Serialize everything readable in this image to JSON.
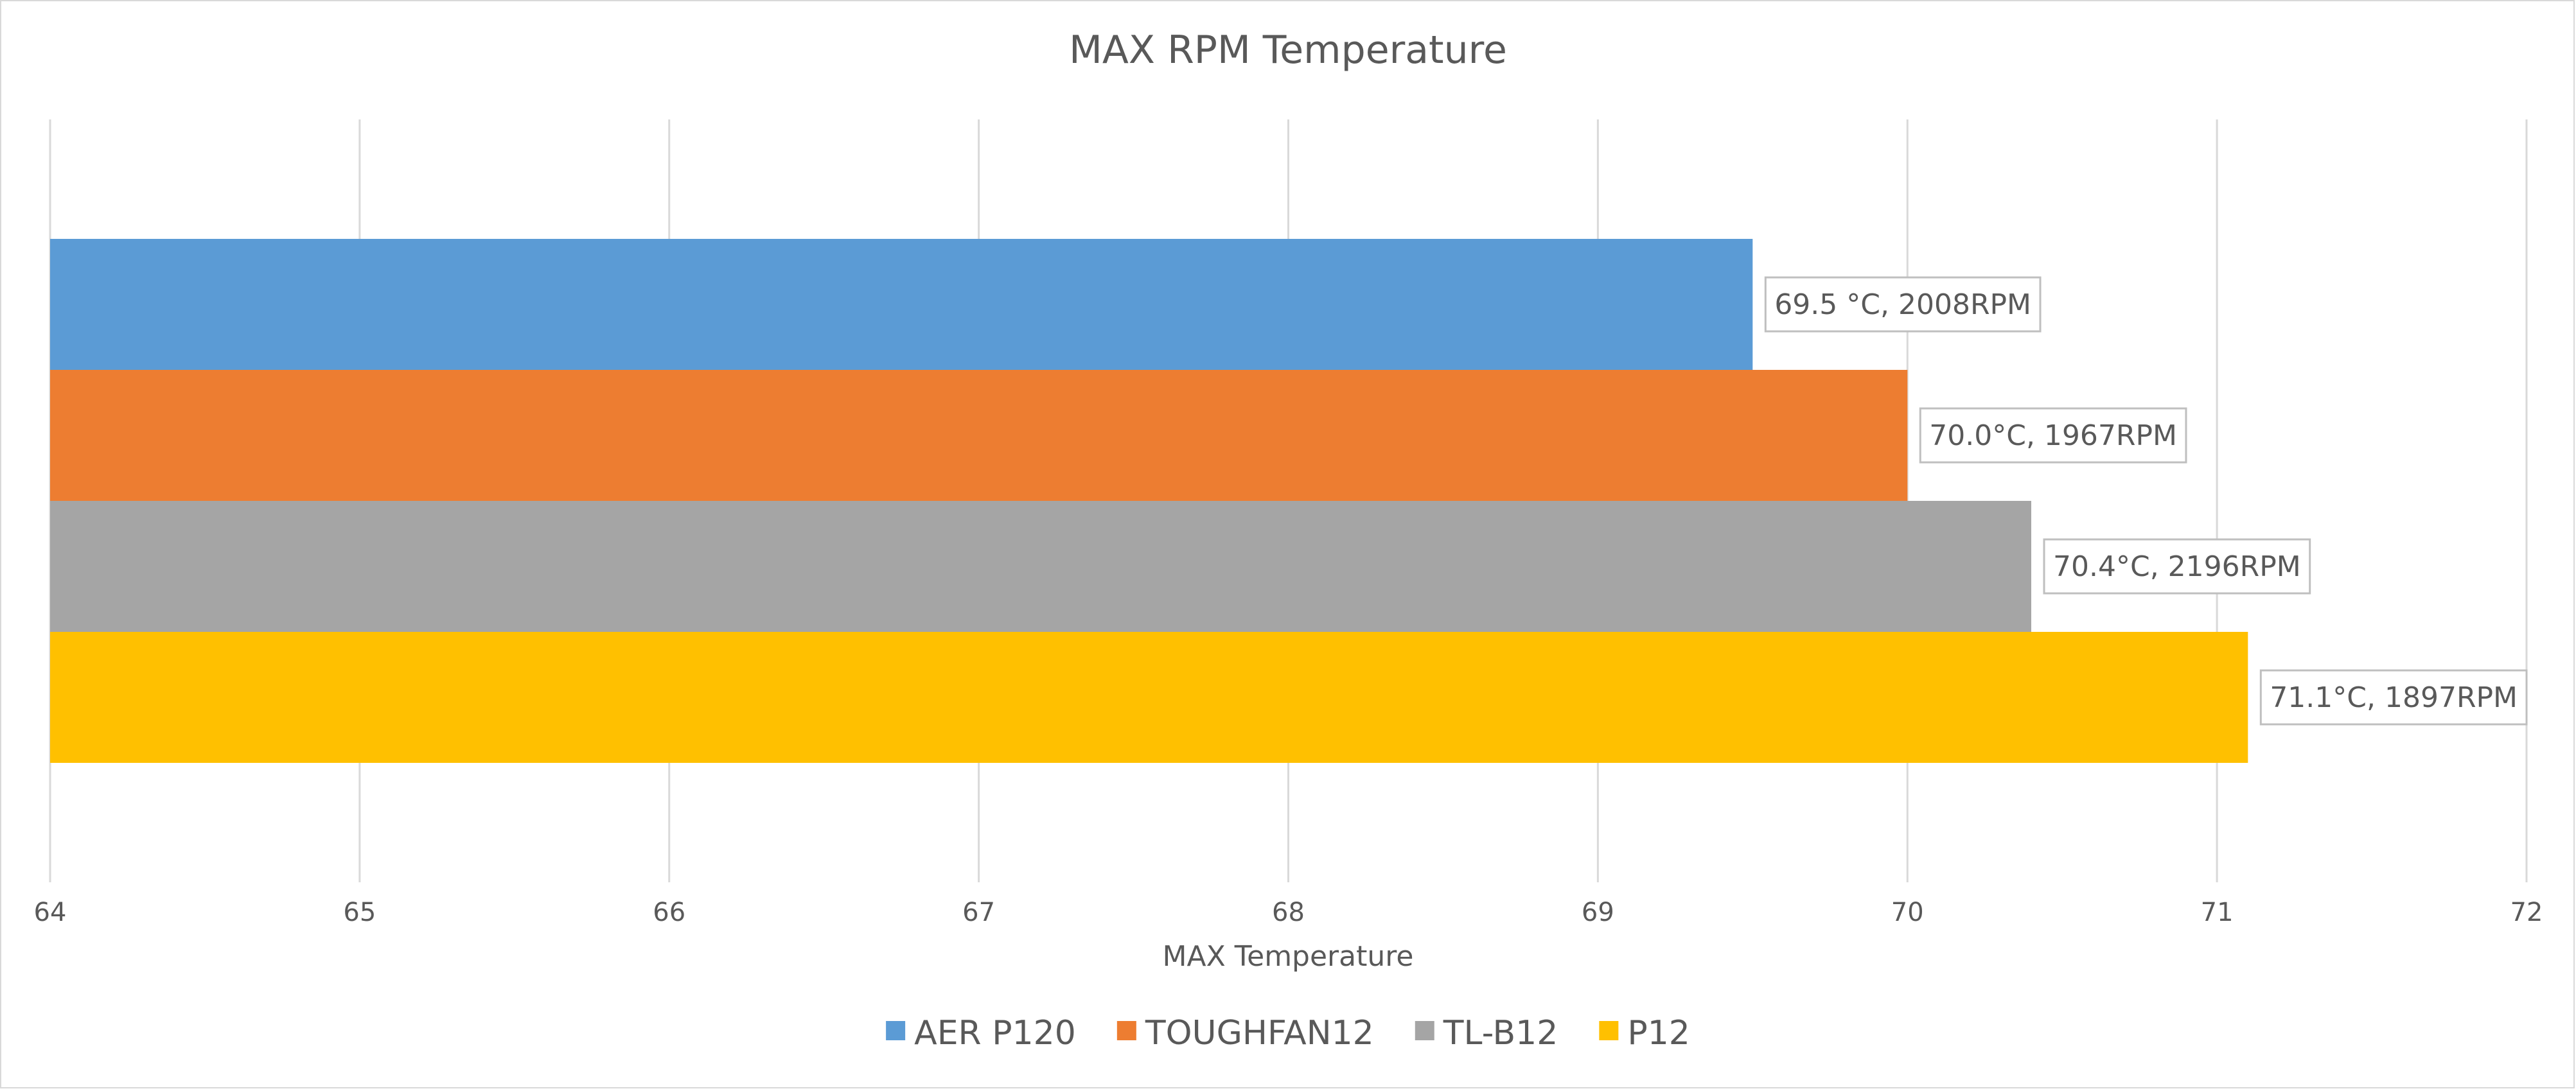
{
  "chart_data": {
    "type": "bar",
    "orientation": "horizontal",
    "title": "MAX RPM Temperature",
    "xlabel": "MAX Temperature",
    "ylabel": "",
    "xlim": [
      64,
      72
    ],
    "x_ticks": [
      "64",
      "65",
      "66",
      "67",
      "68",
      "69",
      "70",
      "71",
      "72"
    ],
    "grid": true,
    "legend_position": "bottom",
    "series": [
      {
        "name": "AER P120",
        "value": 69.5,
        "label": "69.5 °C, 2008RPM",
        "color": "#5b9bd5"
      },
      {
        "name": "TOUGHFAN12",
        "value": 70.0,
        "label": "70.0°C, 1967RPM",
        "color": "#ed7d31"
      },
      {
        "name": "TL-B12",
        "value": 70.4,
        "label": "70.4°C, 2196RPM",
        "color": "#a5a5a5"
      },
      {
        "name": "P12",
        "value": 71.1,
        "label": "71.1°C, 1897RPM",
        "color": "#ffc000"
      }
    ]
  }
}
